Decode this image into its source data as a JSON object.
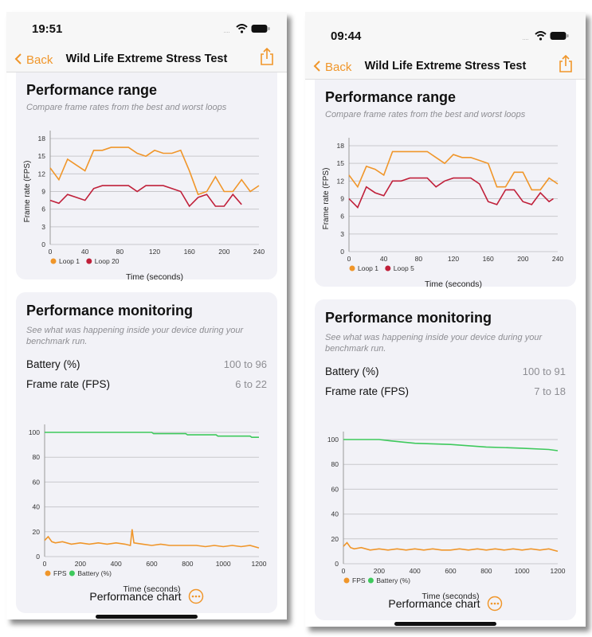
{
  "colors": {
    "accent": "#f0962a",
    "loop_best": "#f0962a",
    "loop_worst": "#c0203a",
    "fps": "#f0962a",
    "battery": "#3ec95c"
  },
  "phones": [
    {
      "status": {
        "time": "19:51",
        "icons": [
          "cellular-icon",
          "wifi-icon",
          "battery-icon"
        ]
      },
      "nav": {
        "back": "Back",
        "title": "Wild Life Extreme Stress Test",
        "share_icon": "share-icon"
      },
      "range": {
        "title": "Performance range",
        "subtitle": "Compare frame rates from the best and worst loops",
        "chart": {
          "type": "line",
          "ylabel": "Frame rate (FPS)",
          "xlabel": "Time (seconds)",
          "xlim": [
            0,
            240
          ],
          "ylim": [
            0,
            18
          ],
          "xticks": [
            "0",
            "40",
            "80",
            "120",
            "160",
            "200",
            "240"
          ],
          "yticks": [
            "0",
            "3",
            "6",
            "9",
            "12",
            "15",
            "18"
          ],
          "grid": true,
          "legend": "bottom-left",
          "series": [
            {
              "name": "Loop 1",
              "x": [
                0,
                10,
                20,
                30,
                40,
                50,
                60,
                70,
                80,
                90,
                100,
                110,
                120,
                130,
                140,
                150,
                160,
                170,
                180,
                190,
                200,
                210,
                220,
                230,
                240
              ],
              "y": [
                13,
                11,
                14.5,
                13.5,
                12.5,
                16,
                16,
                16.5,
                16.5,
                16.5,
                15.5,
                15,
                16,
                15.5,
                15.5,
                16,
                12.5,
                8.5,
                9,
                11.5,
                9,
                9,
                11,
                9,
                10
              ]
            },
            {
              "name": "Loop 20",
              "x": [
                0,
                10,
                20,
                30,
                40,
                50,
                60,
                70,
                80,
                90,
                100,
                110,
                120,
                130,
                140,
                150,
                160,
                170,
                180,
                190,
                200,
                210,
                220
              ],
              "y": [
                7.5,
                7,
                8.5,
                8,
                7.5,
                9.5,
                10,
                10,
                10,
                10,
                9,
                10,
                10,
                10,
                9.5,
                9,
                6.5,
                8,
                8.5,
                6.5,
                6.5,
                8.5,
                6.8
              ]
            }
          ]
        }
      },
      "monitoring": {
        "title": "Performance monitoring",
        "description": "See what was happening inside your device during your benchmark run.",
        "rows": [
          {
            "label": "Battery (%)",
            "value": "100 to 96"
          },
          {
            "label": "Frame rate (FPS)",
            "value": "6 to 22"
          }
        ],
        "chart": {
          "type": "line",
          "xlabel": "Time (seconds)",
          "xlim": [
            0,
            1200
          ],
          "ylim": [
            0,
            100
          ],
          "xticks": [
            "0",
            "200",
            "400",
            "600",
            "800",
            "1000",
            "1200"
          ],
          "yticks": [
            "0",
            "20",
            "40",
            "60",
            "80",
            "100"
          ],
          "grid": true,
          "legend": "bottom-left",
          "series": [
            {
              "name": "FPS",
              "x": [
                0,
                20,
                40,
                60,
                100,
                150,
                200,
                250,
                300,
                350,
                400,
                450,
                480,
                490,
                500,
                550,
                600,
                650,
                700,
                750,
                800,
                850,
                900,
                950,
                1000,
                1050,
                1100,
                1150,
                1200
              ],
              "y": [
                13,
                16,
                12,
                11,
                12,
                10,
                11,
                10,
                11,
                10,
                11,
                10,
                9,
                22,
                11,
                10,
                9,
                10,
                9,
                9,
                9,
                9,
                8,
                9,
                8,
                9,
                8,
                9,
                7
              ]
            },
            {
              "name": "Battery (%)",
              "x": [
                0,
                600,
                610,
                790,
                800,
                960,
                970,
                1150,
                1160,
                1200
              ],
              "y": [
                100,
                100,
                99,
                99,
                98,
                98,
                97,
                97,
                96,
                96
              ]
            }
          ]
        },
        "chart_button": "Performance chart"
      }
    },
    {
      "status": {
        "time": "09:44",
        "icons": [
          "cellular-icon",
          "wifi-icon",
          "battery-icon"
        ]
      },
      "nav": {
        "back": "Back",
        "title": "Wild Life Extreme Stress Test",
        "share_icon": "share-icon"
      },
      "range": {
        "title": "Performance range",
        "subtitle": "Compare frame rates from the best and worst loops",
        "chart": {
          "type": "line",
          "ylabel": "Frame rate (FPS)",
          "xlabel": "Time (seconds)",
          "xlim": [
            0,
            240
          ],
          "ylim": [
            0,
            18
          ],
          "xticks": [
            "0",
            "40",
            "80",
            "120",
            "160",
            "200",
            "240"
          ],
          "yticks": [
            "0",
            "3",
            "6",
            "9",
            "12",
            "15",
            "18"
          ],
          "grid": true,
          "legend": "bottom-left",
          "series": [
            {
              "name": "Loop 1",
              "x": [
                0,
                10,
                20,
                30,
                40,
                50,
                60,
                70,
                80,
                90,
                100,
                110,
                120,
                130,
                140,
                150,
                160,
                170,
                180,
                190,
                200,
                210,
                220,
                230,
                240
              ],
              "y": [
                13,
                11,
                14.5,
                14,
                13,
                17,
                17,
                17,
                17,
                17,
                16,
                15,
                16.5,
                16,
                16,
                15.5,
                15,
                11,
                11,
                13.5,
                13.5,
                10.5,
                10.5,
                12.5,
                11.5
              ]
            },
            {
              "name": "Loop 5",
              "x": [
                0,
                10,
                20,
                30,
                40,
                50,
                60,
                70,
                80,
                90,
                100,
                110,
                120,
                130,
                140,
                150,
                160,
                170,
                180,
                190,
                200,
                210,
                220,
                230,
                235
              ],
              "y": [
                9,
                7.5,
                11,
                10,
                9.5,
                12,
                12,
                12.5,
                12.5,
                12.5,
                11,
                12,
                12.5,
                12.5,
                12.5,
                11.5,
                8.5,
                8,
                10.5,
                10.5,
                8.5,
                8,
                10,
                8.5,
                9
              ]
            }
          ]
        }
      },
      "monitoring": {
        "title": "Performance monitoring",
        "description": "See what was happening inside your device during your benchmark run.",
        "rows": [
          {
            "label": "Battery (%)",
            "value": "100 to 91"
          },
          {
            "label": "Frame rate (FPS)",
            "value": "7 to 18"
          }
        ],
        "chart": {
          "type": "line",
          "xlabel": "Time (seconds)",
          "xlim": [
            0,
            1200
          ],
          "ylim": [
            0,
            100
          ],
          "xticks": [
            "0",
            "200",
            "400",
            "600",
            "800",
            "1000",
            "1200"
          ],
          "yticks": [
            "0",
            "20",
            "40",
            "60",
            "80",
            "100"
          ],
          "grid": true,
          "legend": "bottom-left",
          "series": [
            {
              "name": "FPS",
              "x": [
                0,
                20,
                40,
                60,
                100,
                150,
                200,
                250,
                300,
                350,
                400,
                450,
                500,
                550,
                600,
                650,
                700,
                750,
                800,
                850,
                900,
                950,
                1000,
                1050,
                1100,
                1150,
                1200
              ],
              "y": [
                14,
                17,
                13,
                12,
                13,
                11,
                12,
                11,
                12,
                11,
                12,
                11,
                12,
                11,
                11,
                12,
                11,
                12,
                11,
                12,
                11,
                12,
                11,
                12,
                11,
                12,
                10
              ]
            },
            {
              "name": "Battery (%)",
              "x": [
                0,
                200,
                260,
                400,
                600,
                800,
                1000,
                1150,
                1200
              ],
              "y": [
                100,
                100,
                99,
                97,
                96,
                94,
                93,
                92,
                91
              ]
            }
          ]
        },
        "chart_button": "Performance chart"
      }
    }
  ]
}
